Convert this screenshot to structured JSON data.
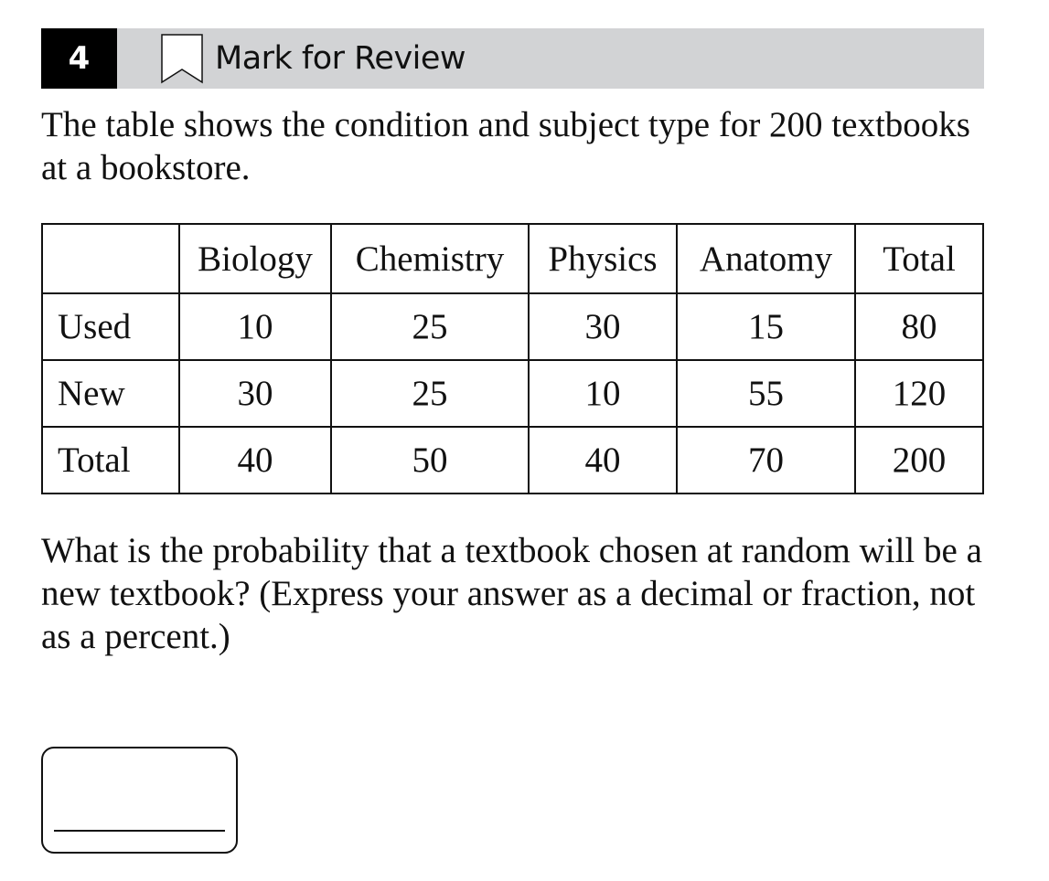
{
  "header": {
    "question_number": "4",
    "mark_for_review_label": "Mark for Review",
    "bookmark_icon": "bookmark-icon"
  },
  "stem": "The table shows the condition and subject type for 200 textbooks at a bookstore.",
  "table": {
    "columns": [
      "",
      "Biology",
      "Chemistry",
      "Physics",
      "Anatomy",
      "Total"
    ],
    "rows": [
      [
        "Used",
        "10",
        "25",
        "30",
        "15",
        "80"
      ],
      [
        "New",
        "30",
        "25",
        "10",
        "55",
        "120"
      ],
      [
        "Total",
        "40",
        "50",
        "40",
        "70",
        "200"
      ]
    ]
  },
  "question": "What is the probability that a textbook chosen at random will be a new textbook? (Express your answer as a decimal or fraction, not as a percent.)",
  "answer": {
    "value": ""
  }
}
